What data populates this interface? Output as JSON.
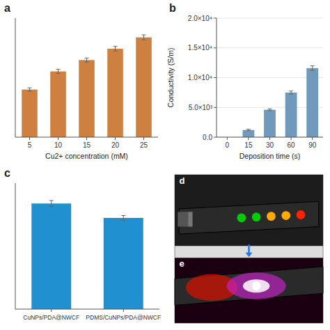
{
  "chart_data": [
    {
      "type": "bar",
      "title": "a",
      "categories": [
        "5",
        "10",
        "15",
        "20",
        "25"
      ],
      "values": [
        0.42,
        0.58,
        0.68,
        0.78,
        0.88
      ],
      "errors": [
        0.015,
        0.018,
        0.018,
        0.02,
        0.022
      ],
      "xlabel": "Cu2+ concentration (mM)",
      "color": "#CD8040",
      "ylim": [
        0,
        1.05
      ],
      "tick_labels": "x"
    },
    {
      "type": "bar",
      "title": "b",
      "categories": [
        "0",
        "15",
        "30",
        "60",
        "90"
      ],
      "values": [
        null,
        1200,
        4600,
        7500,
        11600
      ],
      "errors": [
        null,
        120,
        150,
        250,
        380
      ],
      "xlabel": "Deposition time (s)",
      "ylabel": "Conductivity (S/m)",
      "color": "#7099BB",
      "ylim": [
        0,
        20000
      ],
      "yticks": [
        {
          "value": 0,
          "label": "0.0"
        },
        {
          "value": 5000,
          "label": "5.0×10³"
        },
        {
          "value": 10000,
          "label": "1.0×10⁴"
        },
        {
          "value": 15000,
          "label": "1.5×10⁴"
        },
        {
          "value": 20000,
          "label": "2.0×10⁴"
        }
      ]
    },
    {
      "type": "bar",
      "title": "c",
      "categories": [
        "CuNPs/PDA@NWCF",
        "PDMS/CuNPs/PDA@NWCF"
      ],
      "values": [
        0.88,
        0.76
      ],
      "errors": [
        0.025,
        0.02
      ],
      "color": "#2090D0",
      "ylim": [
        0,
        1.05
      ],
      "tick_labels": "x"
    },
    {
      "type": "illustration",
      "annotations": [
        "d",
        "e"
      ],
      "color": "#2277EE"
    }
  ]
}
